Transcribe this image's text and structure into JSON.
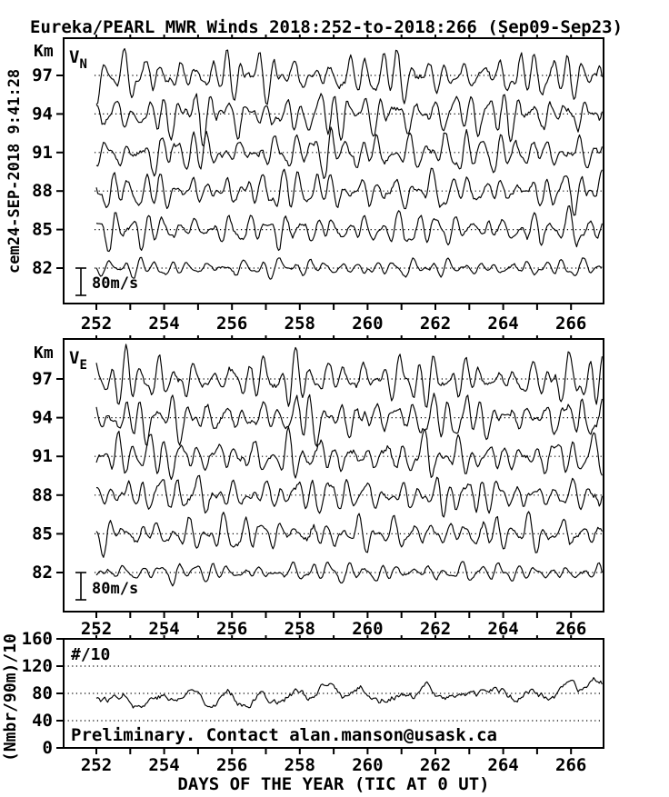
{
  "title": "Eureka/PEARL MWR Winds 2018:252-to-2018:266 (Sep09-Sep23)",
  "left_timestamp": "cem24-SEP-2018 9:41:28",
  "colors": {
    "foreground": "#000000",
    "background": "#ffffff"
  },
  "chart_data": {
    "type": "line",
    "x": {
      "label": "DAYS OF THE YEAR (TIC AT 0 UT)",
      "range_days": [
        251.0,
        267.0
      ],
      "major_ticks": [
        252,
        254,
        256,
        258,
        260,
        262,
        264,
        266
      ],
      "minor_tick_step_days": 1,
      "data_start_day": 252.0,
      "data_end_day": 266.95,
      "sampling_step_days": 0.0416667
    },
    "panels": [
      {
        "id": "vn",
        "label": {
          "base": "V",
          "sub": "N"
        },
        "y_unit": "Km",
        "y_ticks_km": [
          97,
          94,
          91,
          88,
          85,
          82
        ],
        "scale_bar": {
          "label": "80m/s",
          "value_ms": 80
        },
        "series": [
          {
            "altitude_km": 97,
            "mean_ms": 0,
            "amplitude_ms": 60,
            "seed": 11
          },
          {
            "altitude_km": 94,
            "mean_ms": 0,
            "amplitude_ms": 62,
            "seed": 12
          },
          {
            "altitude_km": 91,
            "mean_ms": 0,
            "amplitude_ms": 56,
            "seed": 13
          },
          {
            "altitude_km": 88,
            "mean_ms": 0,
            "amplitude_ms": 52,
            "seed": 14
          },
          {
            "altitude_km": 85,
            "mean_ms": 0,
            "amplitude_ms": 44,
            "seed": 15
          },
          {
            "altitude_km": 82,
            "mean_ms": 0,
            "amplitude_ms": 24,
            "seed": 16
          }
        ]
      },
      {
        "id": "ve",
        "label": {
          "base": "V",
          "sub": "E"
        },
        "y_unit": "Km",
        "y_ticks_km": [
          97,
          94,
          91,
          88,
          85,
          82
        ],
        "scale_bar": {
          "label": "80m/s",
          "value_ms": 80
        },
        "series": [
          {
            "altitude_km": 97,
            "mean_ms": 0,
            "amplitude_ms": 62,
            "seed": 21
          },
          {
            "altitude_km": 94,
            "mean_ms": 0,
            "amplitude_ms": 58,
            "seed": 22
          },
          {
            "altitude_km": 91,
            "mean_ms": 0,
            "amplitude_ms": 54,
            "seed": 23
          },
          {
            "altitude_km": 88,
            "mean_ms": 0,
            "amplitude_ms": 50,
            "seed": 24
          },
          {
            "altitude_km": 85,
            "mean_ms": 0,
            "amplitude_ms": 46,
            "seed": 25
          },
          {
            "altitude_km": 82,
            "mean_ms": 0,
            "amplitude_ms": 26,
            "seed": 26
          }
        ]
      },
      {
        "id": "count",
        "inside_label": "#/10",
        "y_axis_title": "(Nmbr/90m)/10",
        "y_range": [
          0,
          160
        ],
        "y_ticks": [
          0,
          40,
          80,
          120,
          160
        ],
        "gridlines": [
          40,
          80,
          120
        ],
        "note": "Preliminary. Contact alan.manson@usask.ca",
        "series": {
          "mean": 78,
          "min": 52,
          "max": 110,
          "diurnal_amplitude": 6,
          "seed": 77
        }
      }
    ]
  }
}
